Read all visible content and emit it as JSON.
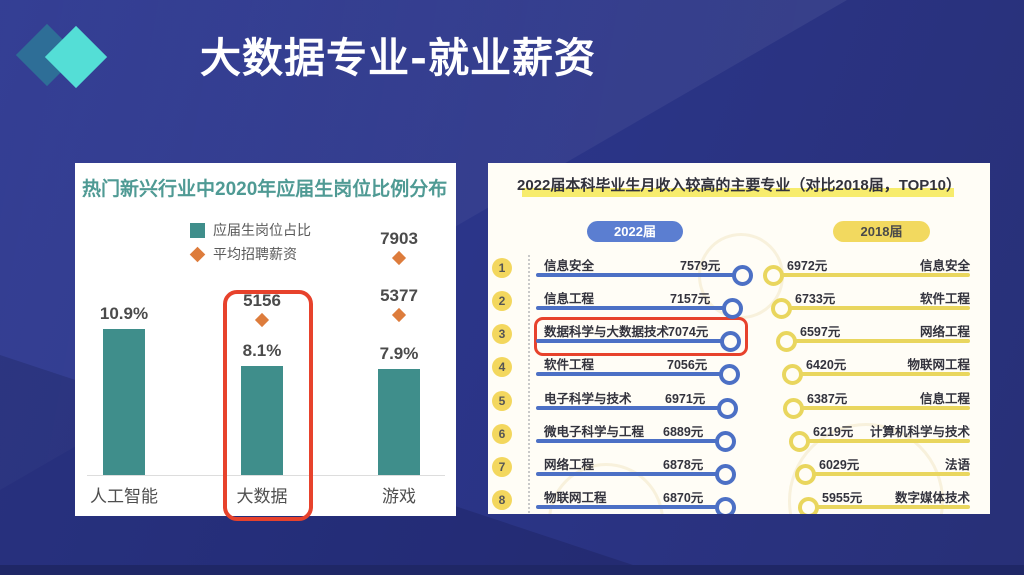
{
  "slide": {
    "title": "大数据专业-就业薪资"
  },
  "left_chart": {
    "title": "热门新兴行业中2020年应届生岗位比例分布",
    "legend": {
      "bar_label": "应届生岗位占比",
      "marker_label": "平均招聘薪资"
    },
    "columns": [
      {
        "category": "人工智能",
        "percent": 10.9,
        "percent_label": "10.9%",
        "markers": [],
        "highlighted": false
      },
      {
        "category": "大数据",
        "percent": 8.1,
        "percent_label": "8.1%",
        "markers": [
          {
            "value": 5156,
            "label": "5156"
          }
        ],
        "highlighted": true
      },
      {
        "category": "游戏",
        "percent": 7.9,
        "percent_label": "7.9%",
        "markers": [
          {
            "value": 7903,
            "label": "7903"
          },
          {
            "value": 5377,
            "label": "5377"
          }
        ],
        "highlighted": false
      }
    ]
  },
  "right_chart": {
    "title": "2022届本科毕业生月收入较高的主要专业（对比2018届，TOP10）",
    "group_2022_label": "2022届",
    "group_2018_label": "2018届",
    "highlighted_rank": "3",
    "rows": [
      {
        "rank": "1",
        "major_2022": "信息安全",
        "value_2022": 7579,
        "value_2022_label": "7579元",
        "value_2018": 6972,
        "value_2018_label": "6972元",
        "major_2018": "信息安全"
      },
      {
        "rank": "2",
        "major_2022": "信息工程",
        "value_2022": 7157,
        "value_2022_label": "7157元",
        "value_2018": 6733,
        "value_2018_label": "6733元",
        "major_2018": "软件工程"
      },
      {
        "rank": "3",
        "major_2022": "数据科学与大数据技术",
        "value_2022": 7074,
        "value_2022_label": "7074元",
        "value_2018": 6597,
        "value_2018_label": "6597元",
        "major_2018": "网络工程"
      },
      {
        "rank": "4",
        "major_2022": "软件工程",
        "value_2022": 7056,
        "value_2022_label": "7056元",
        "value_2018": 6420,
        "value_2018_label": "6420元",
        "major_2018": "物联网工程"
      },
      {
        "rank": "5",
        "major_2022": "电子科学与技术",
        "value_2022": 6971,
        "value_2022_label": "6971元",
        "value_2018": 6387,
        "value_2018_label": "6387元",
        "major_2018": "信息工程"
      },
      {
        "rank": "6",
        "major_2022": "微电子科学与工程",
        "value_2022": 6889,
        "value_2022_label": "6889元",
        "value_2018": 6219,
        "value_2018_label": "6219元",
        "major_2018": "计算机科学与技术"
      },
      {
        "rank": "7",
        "major_2022": "网络工程",
        "value_2022": 6878,
        "value_2022_label": "6878元",
        "value_2018": 6029,
        "value_2018_label": "6029元",
        "major_2018": "法语"
      },
      {
        "rank": "8",
        "major_2022": "物联网工程",
        "value_2022": 6870,
        "value_2022_label": "6870元",
        "value_2018": 5955,
        "value_2018_label": "5955元",
        "major_2018": "数字媒体技术"
      }
    ]
  },
  "chart_data": [
    {
      "type": "bar",
      "title": "热门新兴行业中2020年应届生岗位比例分布",
      "categories": [
        "人工智能",
        "大数据",
        "游戏"
      ],
      "series": [
        {
          "name": "应届生岗位占比",
          "unit": "%",
          "values": [
            10.9,
            8.1,
            7.9
          ]
        }
      ],
      "salary_markers": [
        {
          "category": "大数据",
          "name": "平均招聘薪资",
          "unit": "元",
          "value": 5156
        },
        {
          "category": "游戏",
          "name": "平均招聘薪资",
          "unit": "元",
          "value": 7903
        },
        {
          "category": "游戏",
          "name": "平均招聘薪资",
          "unit": "元",
          "value": 5377
        }
      ],
      "legend_position": "top",
      "grid": false,
      "highlight": "大数据",
      "accent_colors": {
        "bar": "#3f8e8b",
        "marker": "#dd7c3c",
        "highlight_box": "#e7422c"
      }
    },
    {
      "type": "bar",
      "orientation": "horizontal",
      "title": "2022届本科毕业生月收入较高的主要专业（对比2018届，TOP10）",
      "unit": "元",
      "series": [
        {
          "name": "2022届",
          "color": "#4c70c5",
          "data": [
            {
              "major": "信息安全",
              "value": 7579
            },
            {
              "major": "信息工程",
              "value": 7157
            },
            {
              "major": "数据科学与大数据技术",
              "value": 7074
            },
            {
              "major": "软件工程",
              "value": 7056
            },
            {
              "major": "电子科学与技术",
              "value": 6971
            },
            {
              "major": "微电子科学与工程",
              "value": 6889
            },
            {
              "major": "网络工程",
              "value": 6878
            },
            {
              "major": "物联网工程",
              "value": 6870
            }
          ]
        },
        {
          "name": "2018届",
          "color": "#e9d65e",
          "data": [
            {
              "major": "信息安全",
              "value": 6972
            },
            {
              "major": "软件工程",
              "value": 6733
            },
            {
              "major": "网络工程",
              "value": 6597
            },
            {
              "major": "物联网工程",
              "value": 6420
            },
            {
              "major": "信息工程",
              "value": 6387
            },
            {
              "major": "计算机科学与技术",
              "value": 6219
            },
            {
              "major": "法语",
              "value": 6029
            },
            {
              "major": "数字媒体技术",
              "value": 5955
            }
          ]
        }
      ],
      "highlight": "数据科学与大数据技术",
      "legend_position": "top"
    }
  ]
}
